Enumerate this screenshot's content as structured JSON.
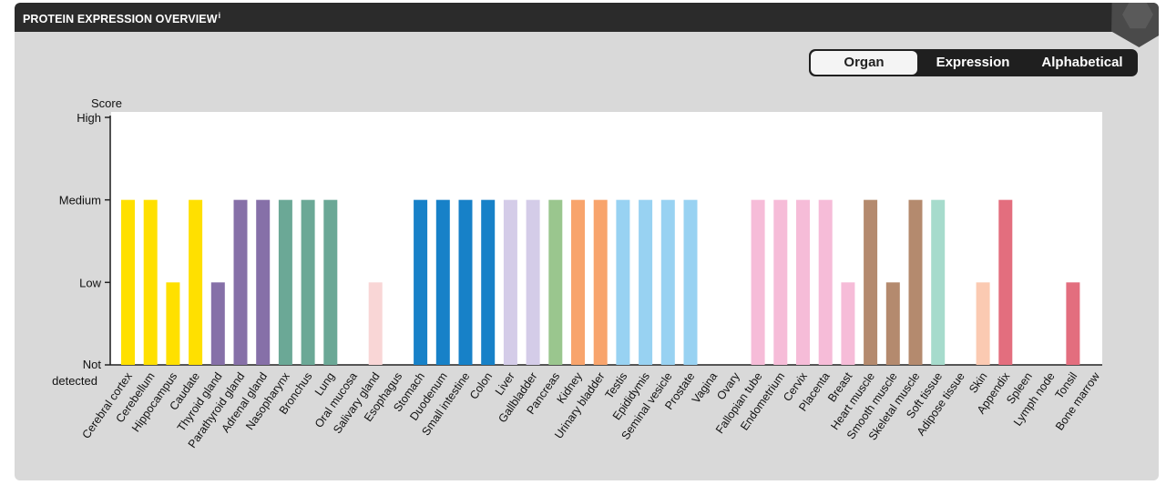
{
  "header": {
    "title": "PROTEIN EXPRESSION OVERVIEW",
    "info_mark": "i"
  },
  "sort_tabs": [
    {
      "label": "Organ",
      "active": true
    },
    {
      "label": "Expression",
      "active": false
    },
    {
      "label": "Alphabetical",
      "active": false
    }
  ],
  "chart_data": {
    "type": "bar",
    "ylabel": "Score",
    "y_ticks": [
      "High",
      "Medium",
      "Low",
      "Not detected"
    ],
    "ylim": [
      0,
      3
    ],
    "categories": [
      "Cerebral cortex",
      "Cerebellum",
      "Hippocampus",
      "Caudate",
      "Thyroid gland",
      "Parathyroid gland",
      "Adrenal gland",
      "Nasopharynx",
      "Bronchus",
      "Lung",
      "Oral mucosa",
      "Salivary gland",
      "Esophagus",
      "Stomach",
      "Duodenum",
      "Small intestine",
      "Colon",
      "Liver",
      "Gallbladder",
      "Pancreas",
      "Kidney",
      "Urinary bladder",
      "Testis",
      "Epididymis",
      "Seminal vesicle",
      "Prostate",
      "Vagina",
      "Ovary",
      "Fallopian tube",
      "Endometrium",
      "Cervix",
      "Placenta",
      "Breast",
      "Heart muscle",
      "Smooth muscle",
      "Skeletal muscle",
      "Soft tissue",
      "Adipose tissue",
      "Skin",
      "Appendix",
      "Spleen",
      "Lymph node",
      "Tonsil",
      "Bone marrow"
    ],
    "values": [
      2,
      2,
      1,
      2,
      1,
      2,
      2,
      2,
      2,
      2,
      0,
      1,
      0,
      2,
      2,
      2,
      2,
      2,
      2,
      2,
      2,
      2,
      2,
      2,
      2,
      2,
      0,
      0,
      2,
      2,
      2,
      2,
      1,
      2,
      1,
      2,
      2,
      0,
      1,
      2,
      0,
      0,
      1,
      0
    ],
    "colors": [
      "#ffe000",
      "#ffe000",
      "#ffe000",
      "#ffe000",
      "#8670a8",
      "#8670a8",
      "#8670a8",
      "#6ba896",
      "#6ba896",
      "#6ba896",
      "#f9d6d6",
      "#f9d6d6",
      "#f9d6d6",
      "#1781c8",
      "#1781c8",
      "#1781c8",
      "#1781c8",
      "#d4cce8",
      "#d4cce8",
      "#9ac68e",
      "#f8a46c",
      "#f8a46c",
      "#98d2f2",
      "#98d2f2",
      "#98d2f2",
      "#98d2f2",
      "#f6bcd8",
      "#f6bcd8",
      "#f6bcd8",
      "#f6bcd8",
      "#f6bcd8",
      "#f6bcd8",
      "#f6bcd8",
      "#b48a6e",
      "#b48a6e",
      "#b48a6e",
      "#a6dbcc",
      "#a6dbcc",
      "#fbcab2",
      "#e36e7e",
      "#e36e7e",
      "#e36e7e",
      "#e36e7e",
      "#e36e7e"
    ],
    "grid": false,
    "legend": "none"
  }
}
